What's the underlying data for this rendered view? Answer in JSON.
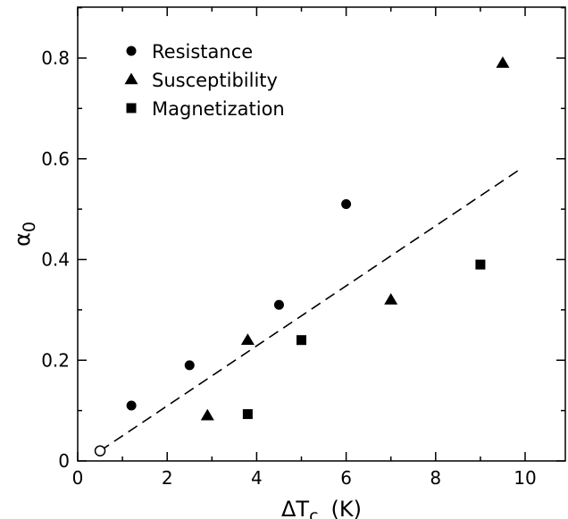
{
  "chart_data": {
    "type": "scatter",
    "title": "",
    "xlabel": "ΔT",
    "xlabel_subscript": "c",
    "xlabel_unit": "(K)",
    "ylabel": "α",
    "ylabel_subscript": "0",
    "xlim": [
      0,
      11
    ],
    "ylim": [
      0,
      0.9
    ],
    "xticks": [
      0,
      2,
      4,
      6,
      8,
      10
    ],
    "yticks": [
      0,
      0.2,
      0.4,
      0.6,
      0.8
    ],
    "xtick_labels": [
      "0",
      "2",
      "4",
      "6",
      "8",
      "10"
    ],
    "ytick_labels": [
      "0",
      "0.2",
      "0.4",
      "0.6",
      "0.8"
    ],
    "grid": false,
    "legend_position": "top-left",
    "series": [
      {
        "name": "Resistance",
        "marker": "circle",
        "points": [
          [
            1.2,
            0.11
          ],
          [
            2.5,
            0.19
          ],
          [
            4.5,
            0.31
          ],
          [
            6.0,
            0.51
          ]
        ]
      },
      {
        "name": "Susceptibility",
        "marker": "triangle",
        "points": [
          [
            2.9,
            0.09
          ],
          [
            3.8,
            0.24
          ],
          [
            7.0,
            0.32
          ],
          [
            9.5,
            0.79
          ]
        ]
      },
      {
        "name": "Magnetization",
        "marker": "square",
        "points": [
          [
            3.8,
            0.093
          ],
          [
            5.0,
            0.24
          ],
          [
            9.0,
            0.39
          ]
        ]
      },
      {
        "marker": "open-circle",
        "points": [
          [
            0.5,
            0.02
          ]
        ]
      }
    ],
    "fit_line": {
      "style": "dashed",
      "points": [
        [
          0.5,
          0.02
        ],
        [
          9.9,
          0.58
        ]
      ]
    }
  }
}
